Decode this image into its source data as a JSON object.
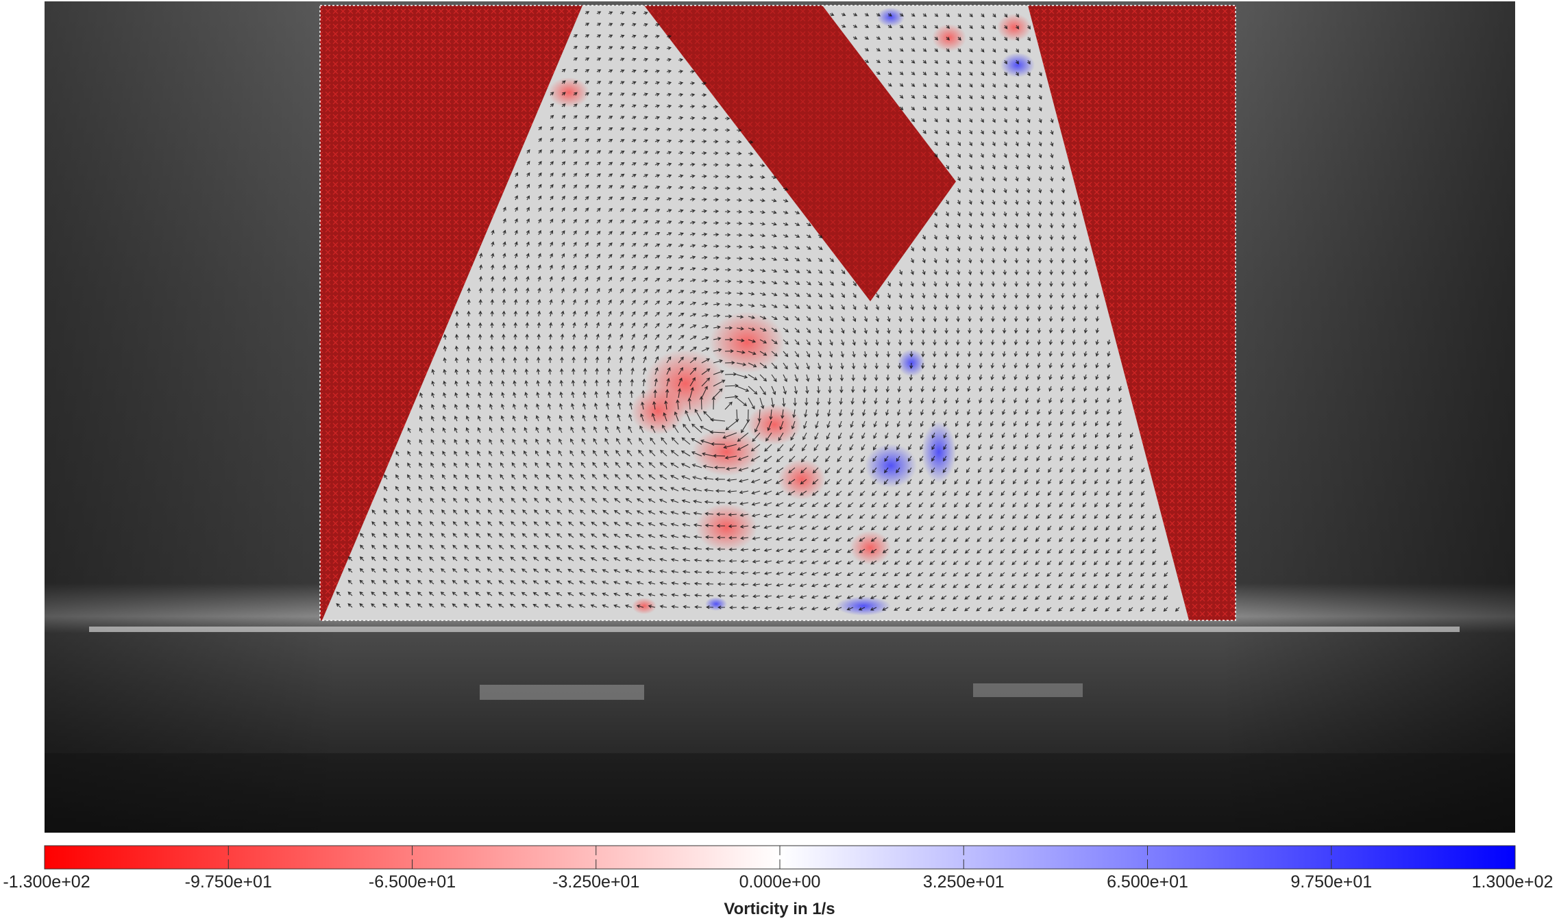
{
  "colorbar": {
    "label": "Vorticity in 1/s",
    "min": -130,
    "max": 130,
    "color_min": "#ff0000",
    "color_mid": "#ffffff",
    "color_max": "#0000ff",
    "ticks": [
      {
        "value": -130,
        "label": "-1.300e+02"
      },
      {
        "value": -97.5,
        "label": "-9.750e+01"
      },
      {
        "value": -65,
        "label": "-6.500e+01"
      },
      {
        "value": -32.5,
        "label": "-3.250e+01"
      },
      {
        "value": 0,
        "label": "0.000e+00"
      },
      {
        "value": 32.5,
        "label": "3.250e+01"
      },
      {
        "value": 65,
        "label": "6.500e+01"
      },
      {
        "value": 97.5,
        "label": "9.750e+01"
      },
      {
        "value": 130,
        "label": "1.300e+02"
      }
    ]
  },
  "overlay": {
    "mask_color": "#a01818",
    "vector_color": "#111111",
    "background_style": "grayscale-camera-frame"
  }
}
